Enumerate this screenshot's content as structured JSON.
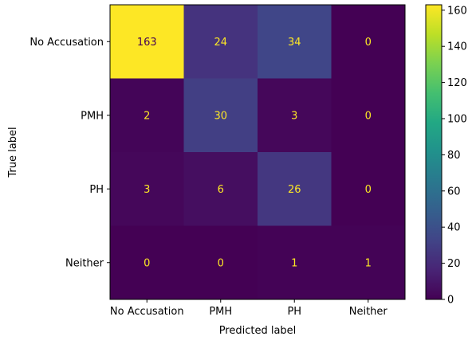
{
  "chart_data": {
    "type": "heatmap",
    "xlabel": "Predicted label",
    "ylabel": "True label",
    "x_categories": [
      "No Accusation",
      "PMH",
      "PH",
      "Neither"
    ],
    "y_categories": [
      "No Accusation",
      "PMH",
      "PH",
      "Neither"
    ],
    "values": [
      [
        163,
        24,
        34,
        0
      ],
      [
        2,
        30,
        3,
        0
      ],
      [
        3,
        6,
        26,
        0
      ],
      [
        0,
        0,
        1,
        1
      ]
    ],
    "colormap": "viridis",
    "colorbar": {
      "range": [
        0,
        163
      ],
      "ticks": [
        0,
        20,
        40,
        60,
        80,
        100,
        120,
        140,
        160
      ]
    },
    "cell_text_colors": {
      "low": "#fde725",
      "high": "#440154"
    }
  }
}
